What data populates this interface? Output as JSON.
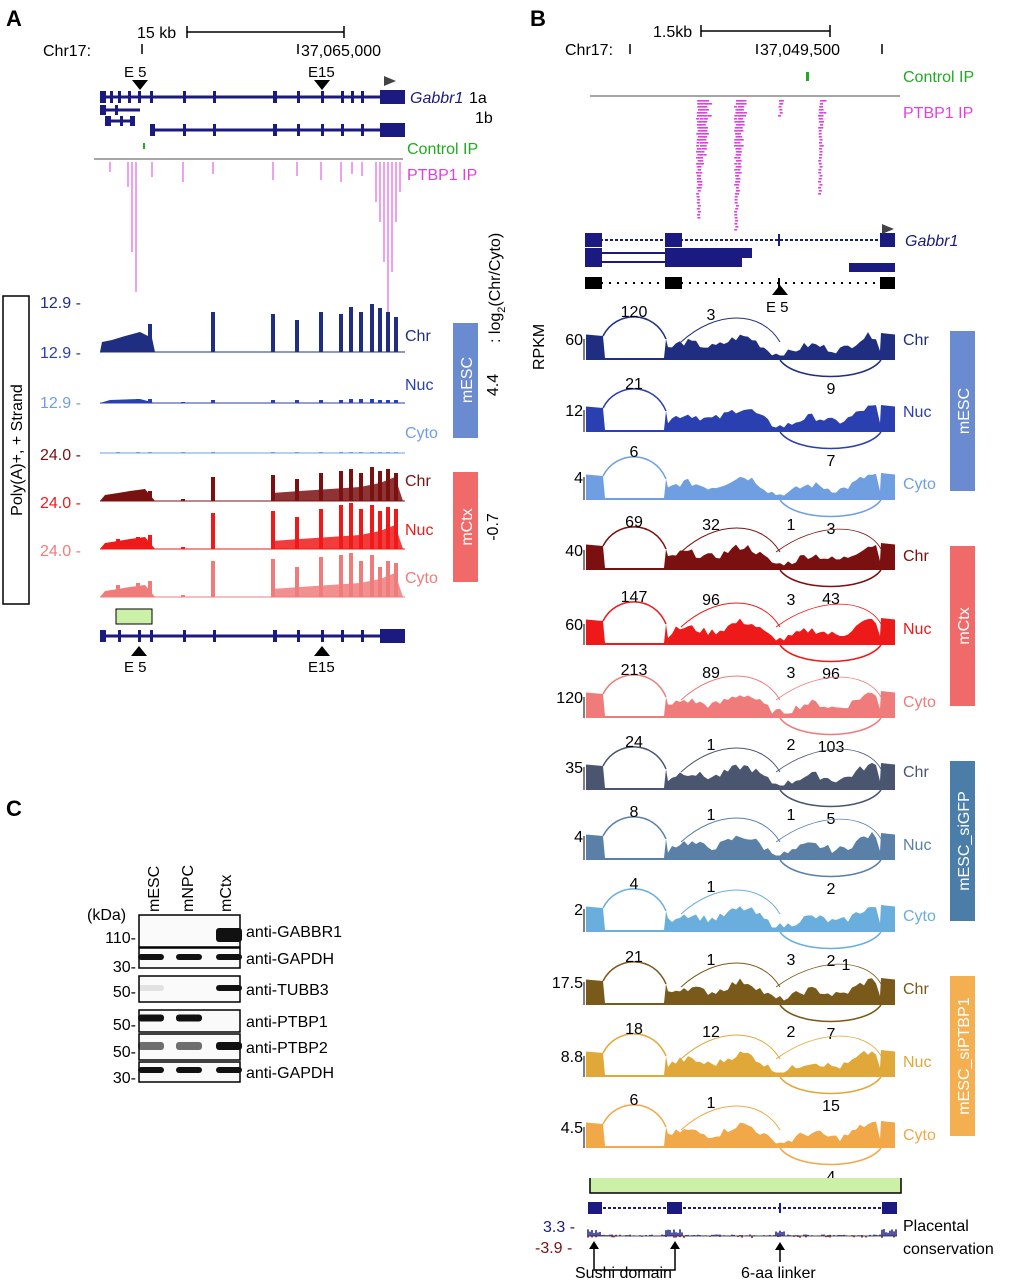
{
  "panelA": {
    "label": "A",
    "scale": "15 kb",
    "chr": "Chr17:",
    "coord": "37,065,000",
    "exon_top_left": "E 5",
    "exon_top_right": "E15",
    "gene_name": "Gabbr1",
    "iso_1a": "1a",
    "iso_1b": "1b",
    "control_ip": "Control IP",
    "ptbp1_ip": "PTBP1 IP",
    "ratio_label_prefix": ": log",
    "ratio_label_sub": "2",
    "ratio_label_suffix": "(Chr/Cyto)",
    "side_box": "Poly(A)+, + Strand",
    "mesc_scales": [
      "12.9 -",
      "12.9 -",
      "12.9 -"
    ],
    "mctx_scales": [
      "24.0 -",
      "24.0 -",
      "24.0 -"
    ],
    "tracks": [
      "Chr",
      "Nuc",
      "Cyto",
      "Chr",
      "Nuc",
      "Cyto"
    ],
    "cell_mesc": "mESC",
    "cell_mctx": "mCtx",
    "ratio_mesc": "4.4",
    "ratio_mctx": "-0.7",
    "exon_bottom_left": "E 5",
    "exon_bottom_right": "E15"
  },
  "panelB": {
    "label": "B",
    "scale": "1.5kb",
    "chr": "Chr17:",
    "coord": "37,049,500",
    "control_ip": "Control IP",
    "ptbp1_ip": "PTBP1 IP",
    "gene_name": "Gabbr1",
    "exon": "E 5",
    "rpkm": "RPKM",
    "tracks": [
      {
        "scale": "60",
        "name": "Chr",
        "j1": "120",
        "j2": "3",
        "j3": "",
        "jb": "9"
      },
      {
        "scale": "12",
        "name": "Nuc",
        "j1": "21",
        "j2": "",
        "j3": "",
        "jb": "7"
      },
      {
        "scale": "4",
        "name": "Cyto",
        "j1": "6",
        "j2": "",
        "j3": "",
        "jb": "3"
      },
      {
        "scale": "40",
        "name": "Chr",
        "j1": "69",
        "j2": "32",
        "j3": "1",
        "jb": "43"
      },
      {
        "scale": "60",
        "name": "Nuc",
        "j1": "147",
        "j2": "96",
        "j3": "3",
        "jb": "96"
      },
      {
        "scale": "120",
        "name": "Cyto",
        "j1": "213",
        "j2": "89",
        "j3": "3",
        "jb": "103"
      },
      {
        "scale": "35",
        "name": "Chr",
        "j1": "24",
        "j2": "1",
        "j3": "2",
        "jb": "5"
      },
      {
        "scale": "4",
        "name": "Nuc",
        "j1": "8",
        "j2": "1",
        "j3": "1",
        "jb": "2"
      },
      {
        "scale": "2",
        "name": "Cyto",
        "j1": "4",
        "j2": "1",
        "j3": "",
        "jb": "2"
      },
      {
        "scale": "17.5",
        "name": "Chr",
        "j1": "21",
        "j2": "1",
        "j3": "3",
        "j4": "1",
        "jb": "7"
      },
      {
        "scale": "8.8",
        "name": "Nuc",
        "j1": "18",
        "j2": "12",
        "j3": "2",
        "jb": "15"
      },
      {
        "scale": "4.5",
        "name": "Cyto",
        "j1": "6",
        "j2": "1",
        "j3": "",
        "jb": "4"
      }
    ],
    "groups": [
      "mESC",
      "mCtx",
      "mESC_siGFP",
      "mESC_siPTBP1"
    ],
    "cons_top": "3.3 -",
    "cons_bottom": "-3.9 -",
    "placental": "Placental",
    "conservation": "conservation",
    "sushi": "Sushi domain",
    "linker": "6-aa linker"
  },
  "panelC": {
    "label": "C",
    "lanes": [
      "mESC",
      "mNPC",
      "mCtx"
    ],
    "kda": "(kDa)",
    "markers": [
      "110-",
      "30-",
      "50-",
      "50-",
      "50-",
      "30-"
    ],
    "antibodies": [
      "anti-GABBR1",
      "anti-GAPDH",
      "anti-TUBB3",
      "anti-PTBP1",
      "anti-PTBP2",
      "anti-GAPDH"
    ]
  },
  "colors": {
    "mesc_chr": "#1f2e80",
    "mesc_nuc": "#2a3fb0",
    "mesc_cyto": "#6f9fe0",
    "mctx_chr": "#7a1010",
    "mctx_nuc": "#ee1a1a",
    "mctx_cyto": "#f07b7b",
    "sigfp_chr": "#4a5570",
    "sigfp_nuc": "#5a80a8",
    "sigfp_cyto": "#6aaedd",
    "siptbp1_chr": "#7a5a1a",
    "siptbp1_nuc": "#e0a838",
    "siptbp1_cyto": "#f0a848",
    "pink": "#e040e0",
    "green": "#22aa22",
    "navy": "#1a1a80",
    "box_mesc": "#6a8bd0",
    "box_mctx": "#f06a6a",
    "box_sigfp": "#4a7ea8",
    "box_siptbp1": "#f4b050",
    "light_green": "#ccf0a8"
  }
}
